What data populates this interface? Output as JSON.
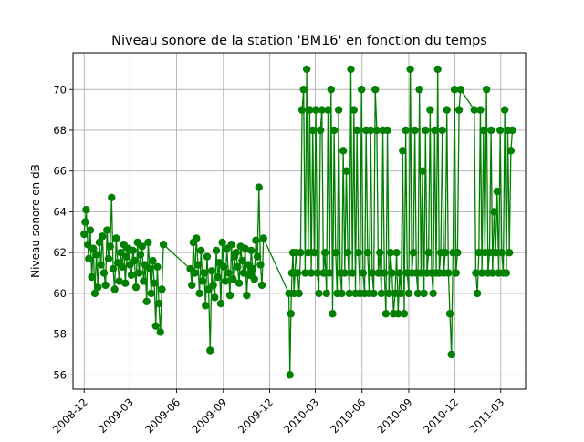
{
  "chart_data": {
    "type": "line",
    "title": "Niveau sonore de la station 'BM16' en fonction du temps",
    "xlabel": "",
    "ylabel": "Niveau sonore en dB",
    "color": "#008000",
    "marker": "circle",
    "grid": true,
    "x_ticks": [
      "2008-12",
      "2009-03",
      "2009-06",
      "2009-09",
      "2009-12",
      "2010-03",
      "2010-06",
      "2010-09",
      "2010-12",
      "2011-03"
    ],
    "y_ticks": [
      56,
      58,
      60,
      62,
      64,
      66,
      68,
      70
    ],
    "xlim": [
      "2008-11-09",
      "2011-04-19"
    ],
    "ylim": [
      55.3,
      71.8
    ],
    "series": [
      {
        "x": [
          "2008-12-01",
          "2008-12-03",
          "2008-12-05",
          "2008-12-08",
          "2008-12-10",
          "2008-12-13",
          "2008-12-16",
          "2008-12-19",
          "2008-12-22",
          "2008-12-25",
          "2008-12-28",
          "2008-12-31",
          "2009-01-03",
          "2009-01-06",
          "2009-01-09",
          "2009-01-12",
          "2009-01-15",
          "2009-01-18",
          "2009-01-21",
          "2009-01-24",
          "2009-01-27",
          "2009-01-30",
          "2009-02-02",
          "2009-02-05",
          "2009-02-08",
          "2009-02-11",
          "2009-02-14",
          "2009-02-17",
          "2009-02-20",
          "2009-02-23",
          "2009-02-26",
          "2009-03-01",
          "2009-03-04",
          "2009-03-07",
          "2009-03-10",
          "2009-03-13",
          "2009-03-16",
          "2009-03-19",
          "2009-03-22",
          "2009-03-25",
          "2009-03-28",
          "2009-03-31",
          "2009-04-03",
          "2009-04-06",
          "2009-04-09",
          "2009-04-12",
          "2009-04-15",
          "2009-04-18",
          "2009-04-21",
          "2009-04-24",
          "2009-04-27",
          "2009-04-30",
          "2009-05-03",
          "2009-05-06",
          "2009-06-28",
          "2009-07-01",
          "2009-07-04",
          "2009-07-07",
          "2009-07-10",
          "2009-07-13",
          "2009-07-16",
          "2009-07-19",
          "2009-07-22",
          "2009-07-25",
          "2009-07-28",
          "2009-07-31",
          "2009-08-03",
          "2009-08-06",
          "2009-08-09",
          "2009-08-12",
          "2009-08-15",
          "2009-08-18",
          "2009-08-21",
          "2009-08-24",
          "2009-08-27",
          "2009-08-30",
          "2009-09-02",
          "2009-09-05",
          "2009-09-08",
          "2009-09-11",
          "2009-09-14",
          "2009-09-17",
          "2009-09-20",
          "2009-09-23",
          "2009-09-26",
          "2009-09-29",
          "2009-10-02",
          "2009-10-05",
          "2009-10-08",
          "2009-10-11",
          "2009-10-14",
          "2009-10-17",
          "2009-10-20",
          "2009-10-23",
          "2009-10-26",
          "2009-10-29",
          "2009-11-01",
          "2009-11-04",
          "2009-11-07",
          "2009-11-10",
          "2009-11-13",
          "2009-11-16",
          "2009-11-19",
          "2010-01-08",
          "2010-01-10",
          "2010-01-12",
          "2010-01-14",
          "2010-01-16",
          "2010-01-18",
          "2010-01-20",
          "2010-01-22",
          "2010-01-25",
          "2010-01-28",
          "2010-01-31",
          "2010-02-03",
          "2010-02-06",
          "2010-02-09",
          "2010-02-12",
          "2010-02-15",
          "2010-02-18",
          "2010-02-21",
          "2010-02-24",
          "2010-02-27",
          "2010-03-02",
          "2010-03-05",
          "2010-03-08",
          "2010-03-11",
          "2010-03-14",
          "2010-03-17",
          "2010-03-20",
          "2010-03-23",
          "2010-03-26",
          "2010-03-29",
          "2010-04-01",
          "2010-04-04",
          "2010-04-07",
          "2010-04-10",
          "2010-04-13",
          "2010-04-16",
          "2010-04-19",
          "2010-04-22",
          "2010-04-25",
          "2010-04-28",
          "2010-05-01",
          "2010-05-04",
          "2010-05-07",
          "2010-05-10",
          "2010-05-13",
          "2010-05-16",
          "2010-05-19",
          "2010-05-22",
          "2010-05-25",
          "2010-05-28",
          "2010-05-31",
          "2010-06-03",
          "2010-06-06",
          "2010-06-09",
          "2010-06-12",
          "2010-06-15",
          "2010-06-18",
          "2010-06-21",
          "2010-06-24",
          "2010-06-27",
          "2010-06-30",
          "2010-07-03",
          "2010-07-06",
          "2010-07-09",
          "2010-07-12",
          "2010-07-15",
          "2010-07-18",
          "2010-07-21",
          "2010-07-24",
          "2010-07-27",
          "2010-07-30",
          "2010-08-02",
          "2010-08-05",
          "2010-08-08",
          "2010-08-11",
          "2010-08-14",
          "2010-08-17",
          "2010-08-20",
          "2010-08-23",
          "2010-08-26",
          "2010-08-29",
          "2010-09-01",
          "2010-09-04",
          "2010-09-07",
          "2010-09-10",
          "2010-09-13",
          "2010-09-16",
          "2010-09-19",
          "2010-09-22",
          "2010-09-25",
          "2010-09-28",
          "2010-10-01",
          "2010-10-04",
          "2010-10-07",
          "2010-10-10",
          "2010-10-13",
          "2010-10-16",
          "2010-10-19",
          "2010-10-22",
          "2010-10-25",
          "2010-10-28",
          "2010-10-31",
          "2010-11-03",
          "2010-11-06",
          "2010-11-09",
          "2010-11-12",
          "2010-11-15",
          "2010-11-18",
          "2010-11-21",
          "2010-11-24",
          "2010-11-27",
          "2010-11-30",
          "2010-12-03",
          "2010-12-06",
          "2010-12-09",
          "2010-12-12",
          "2011-01-08",
          "2011-01-11",
          "2011-01-14",
          "2011-01-17",
          "2011-01-20",
          "2011-01-23",
          "2011-01-26",
          "2011-01-29",
          "2011-02-01",
          "2011-02-04",
          "2011-02-07",
          "2011-02-10",
          "2011-02-13",
          "2011-02-16",
          "2011-02-19",
          "2011-02-22",
          "2011-02-25",
          "2011-02-28",
          "2011-03-03",
          "2011-03-06",
          "2011-03-09",
          "2011-03-12",
          "2011-03-15",
          "2011-03-18",
          "2011-03-21",
          "2011-03-24"
        ],
        "y": [
          62.9,
          63.5,
          64.1,
          62.4,
          61.7,
          63.1,
          60.8,
          62.2,
          60.0,
          61.9,
          60.3,
          62.5,
          61.4,
          62.8,
          61.0,
          60.4,
          63.1,
          61.7,
          62.3,
          64.7,
          61.2,
          60.2,
          62.7,
          61.5,
          60.6,
          62.0,
          61.3,
          62.4,
          60.5,
          61.8,
          62.2,
          61.4,
          60.9,
          62.1,
          61.6,
          60.3,
          62.5,
          61.0,
          61.9,
          62.3,
          60.6,
          61.4,
          59.6,
          62.5,
          61.2,
          60.0,
          61.6,
          60.5,
          58.4,
          61.3,
          59.5,
          58.1,
          60.2,
          62.4,
          61.2,
          60.4,
          62.5,
          61.0,
          62.7,
          61.4,
          60.0,
          62.1,
          60.6,
          61.0,
          59.4,
          61.8,
          60.2,
          57.2,
          61.1,
          60.4,
          59.8,
          62.1,
          60.8,
          61.5,
          59.5,
          62.5,
          61.3,
          60.6,
          62.2,
          61.0,
          59.9,
          62.4,
          60.7,
          61.8,
          62.0,
          61.3,
          60.5,
          62.3,
          61.6,
          61.0,
          62.2,
          59.9,
          61.4,
          60.9,
          62.1,
          61.2,
          60.7,
          62.6,
          61.8,
          65.2,
          61.4,
          60.4,
          62.7,
          60.0,
          56.0,
          59.0,
          61.0,
          62.0,
          60.0,
          61.0,
          62.0,
          61.0,
          60.0,
          62.0,
          69.0,
          70.0,
          61.0,
          71.0,
          62.0,
          69.0,
          61.0,
          68.0,
          62.0,
          69.0,
          61.0,
          60.0,
          68.0,
          69.0,
          61.0,
          62.0,
          60.0,
          69.0,
          61.0,
          70.0,
          59.0,
          68.0,
          62.0,
          60.0,
          69.0,
          61.0,
          60.0,
          67.0,
          61.0,
          66.0,
          62.0,
          60.0,
          71.0,
          61.0,
          69.0,
          60.0,
          68.0,
          62.0,
          60.0,
          70.0,
          61.0,
          60.0,
          68.0,
          62.0,
          60.0,
          68.0,
          61.0,
          60.0,
          70.0,
          68.0,
          61.0,
          62.0,
          60.0,
          68.0,
          61.0,
          59.0,
          68.0,
          60.0,
          62.0,
          61.0,
          59.0,
          60.0,
          62.0,
          59.0,
          61.0,
          60.0,
          67.0,
          59.0,
          68.0,
          61.0,
          60.0,
          71.0,
          61.0,
          62.0,
          68.0,
          61.0,
          60.0,
          70.0,
          61.0,
          66.0,
          60.0,
          68.0,
          61.0,
          62.0,
          69.0,
          61.0,
          60.0,
          68.0,
          61.0,
          71.0,
          61.0,
          62.0,
          68.0,
          61.0,
          62.0,
          69.0,
          61.0,
          59.0,
          57.0,
          62.0,
          70.0,
          61.0,
          62.0,
          69.0,
          70.0,
          69.0,
          61.0,
          60.0,
          62.0,
          69.0,
          61.0,
          68.0,
          62.0,
          70.0,
          61.0,
          62.0,
          68.0,
          61.0,
          64.0,
          62.0,
          65.0,
          61.0,
          68.0,
          62.0,
          61.0,
          69.0,
          61.0,
          68.0,
          62.0,
          67.0,
          68.0
        ]
      }
    ]
  }
}
